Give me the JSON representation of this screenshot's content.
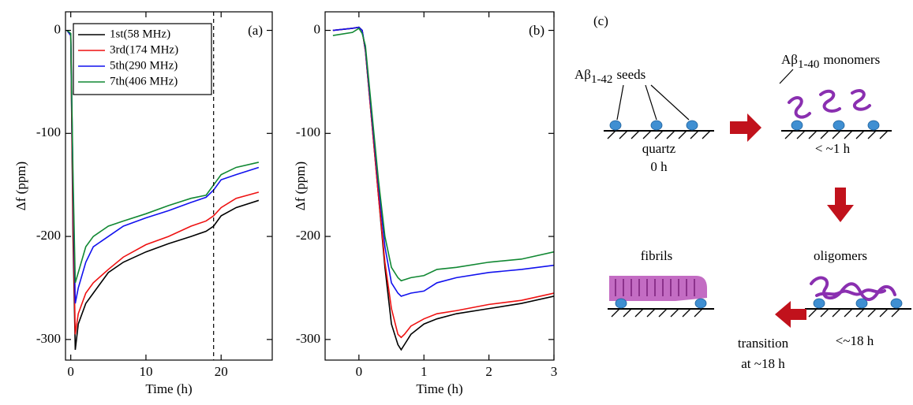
{
  "chart_data": [
    {
      "type": "line",
      "panel_label": "(a)",
      "x_label": "Time (h)",
      "y_label": "Δf (ppm)",
      "xlim": [
        -0.7,
        26.8
      ],
      "ylim": [
        -320,
        18
      ],
      "xticks": [
        0,
        10,
        20
      ],
      "yticks": [
        0,
        -100,
        -200,
        -300
      ],
      "vline": 19,
      "x": [
        -0.5,
        0,
        0.3,
        0.6,
        1,
        2,
        3,
        5,
        7,
        10,
        13,
        16,
        18,
        19,
        20,
        22,
        25
      ],
      "series": [
        {
          "name": "1st(58 MHz)",
          "color": "#000000",
          "values": [
            0,
            -5,
            -200,
            -310,
            -285,
            -265,
            -255,
            -235,
            -225,
            -215,
            -207,
            -200,
            -195,
            -190,
            -180,
            -172,
            -165
          ]
        },
        {
          "name": "3rd(174 MHz)",
          "color": "#ee1111",
          "values": [
            0,
            -5,
            -180,
            -295,
            -275,
            -255,
            -245,
            -232,
            -220,
            -208,
            -200,
            -190,
            -185,
            -180,
            -172,
            -163,
            -157
          ]
        },
        {
          "name": "5th(290 MHz)",
          "color": "#1111ee",
          "values": [
            0,
            -5,
            -150,
            -265,
            -250,
            -225,
            -210,
            -200,
            -190,
            -182,
            -175,
            -167,
            -162,
            -155,
            -145,
            -140,
            -133
          ]
        },
        {
          "name": "7th(406 MHz)",
          "color": "#118833",
          "values": [
            0,
            -3,
            -140,
            -245,
            -235,
            -210,
            -200,
            -190,
            -185,
            -178,
            -170,
            -163,
            -160,
            -150,
            -140,
            -133,
            -128
          ]
        }
      ]
    },
    {
      "type": "line",
      "panel_label": "(b)",
      "x_label": "Time (h)",
      "y_label": "Δf (ppm)",
      "xlim": [
        -0.52,
        3.0
      ],
      "ylim": [
        -320,
        18
      ],
      "xticks": [
        0,
        1,
        2,
        3
      ],
      "yticks": [
        0,
        -100,
        -200,
        -300
      ],
      "x": [
        -0.4,
        -0.1,
        0,
        0.05,
        0.1,
        0.2,
        0.3,
        0.4,
        0.5,
        0.6,
        0.65,
        0.7,
        0.8,
        1,
        1.2,
        1.5,
        2,
        2.5,
        3
      ],
      "series": [
        {
          "color": "#000000",
          "values": [
            0,
            2,
            3,
            0,
            -20,
            -90,
            -160,
            -230,
            -285,
            -305,
            -310,
            -305,
            -295,
            -285,
            -280,
            -275,
            -270,
            -265,
            -258
          ]
        },
        {
          "color": "#ee1111",
          "values": [
            0,
            2,
            3,
            0,
            -20,
            -90,
            -160,
            -225,
            -270,
            -295,
            -298,
            -295,
            -287,
            -280,
            -275,
            -272,
            -266,
            -262,
            -255
          ]
        },
        {
          "color": "#1111ee",
          "values": [
            0,
            2,
            3,
            0,
            -18,
            -85,
            -150,
            -210,
            -245,
            -255,
            -258,
            -257,
            -255,
            -253,
            -245,
            -240,
            -235,
            -232,
            -228
          ]
        },
        {
          "color": "#118833",
          "values": [
            -5,
            -2,
            2,
            -3,
            -15,
            -80,
            -145,
            -200,
            -230,
            -240,
            -243,
            -242,
            -240,
            -238,
            -232,
            -230,
            -225,
            -222,
            -215
          ]
        }
      ]
    }
  ],
  "diagram": {
    "label": "(c)",
    "seeds": {
      "main": "Aβ",
      "sub": "1-42",
      "rest": "seeds"
    },
    "monomers": {
      "main": "Aβ",
      "sub": "1-40",
      "rest": "monomers"
    },
    "quartz": "quartz",
    "time0": "0 h",
    "time1": "< ~1 h",
    "oligomers": "oligomers",
    "time2": "<~18 h",
    "fibrils": "fibrils",
    "transition": "transition",
    "transition_time": "at ~18 h"
  }
}
